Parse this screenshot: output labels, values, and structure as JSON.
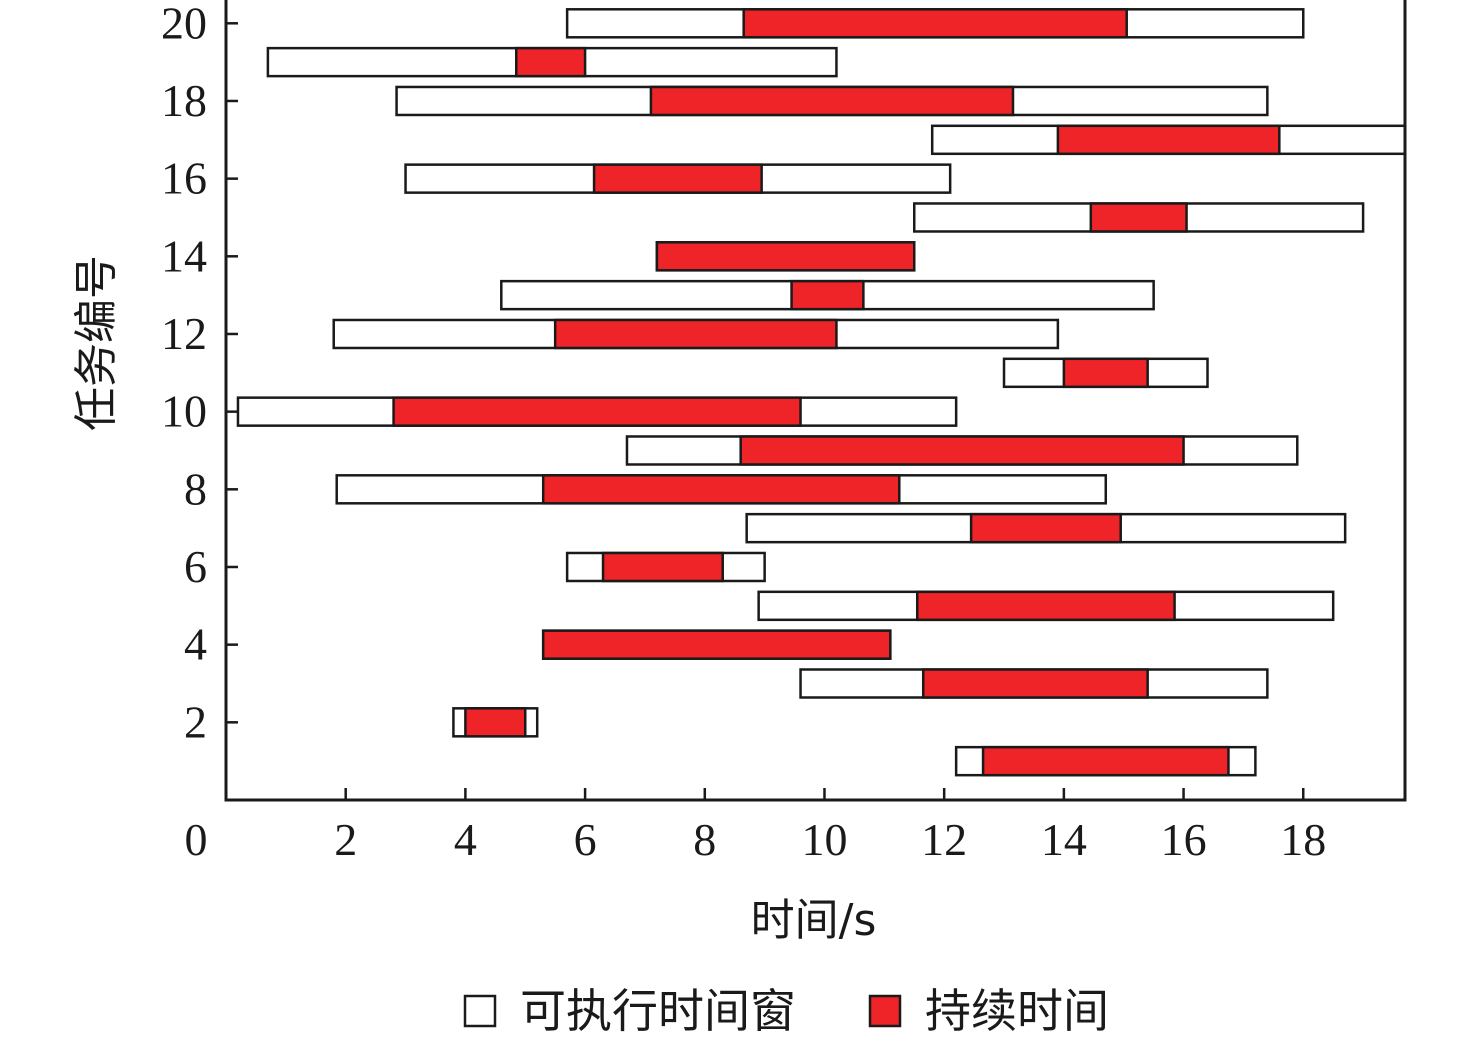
{
  "chart_data": {
    "type": "gantt",
    "xlabel": "时间/s",
    "ylabel": "任务编号",
    "xlim": [
      0,
      19.7
    ],
    "ylim": [
      0,
      20.6
    ],
    "xticks": [
      0,
      2,
      4,
      6,
      8,
      10,
      12,
      14,
      16,
      18
    ],
    "yticks": [
      2,
      4,
      6,
      8,
      10,
      12,
      14,
      16,
      18,
      20
    ],
    "grid": false,
    "legend_position": "bottom",
    "colors": {
      "window": "#ffffff",
      "duration": "#ee2429",
      "stroke": "#1a1a1a"
    },
    "legend": [
      {
        "name": "可执行时间窗",
        "color": "#ffffff"
      },
      {
        "name": "持续时间",
        "color": "#ee2429"
      }
    ],
    "tasks": [
      {
        "id": 1,
        "window": [
          12.2,
          17.2
        ],
        "duration": [
          12.65,
          16.75
        ]
      },
      {
        "id": 2,
        "window": [
          3.8,
          5.2
        ],
        "duration": [
          4.0,
          5.0
        ]
      },
      {
        "id": 3,
        "window": [
          9.6,
          17.4
        ],
        "duration": [
          11.65,
          15.4
        ]
      },
      {
        "id": 4,
        "window": [
          5.3,
          11.1
        ],
        "duration": [
          5.3,
          11.1
        ]
      },
      {
        "id": 5,
        "window": [
          8.9,
          18.5
        ],
        "duration": [
          11.55,
          15.85
        ]
      },
      {
        "id": 6,
        "window": [
          5.7,
          9.0
        ],
        "duration": [
          6.3,
          8.3
        ]
      },
      {
        "id": 7,
        "window": [
          8.7,
          18.7
        ],
        "duration": [
          12.45,
          14.95
        ]
      },
      {
        "id": 8,
        "window": [
          1.85,
          14.7
        ],
        "duration": [
          5.3,
          11.25
        ]
      },
      {
        "id": 9,
        "window": [
          6.7,
          17.9
        ],
        "duration": [
          8.6,
          16.0
        ]
      },
      {
        "id": 10,
        "window": [
          0.2,
          12.2
        ],
        "duration": [
          2.8,
          9.6
        ]
      },
      {
        "id": 11,
        "window": [
          13.0,
          16.4
        ],
        "duration": [
          14.0,
          15.4
        ]
      },
      {
        "id": 12,
        "window": [
          1.8,
          13.9
        ],
        "duration": [
          5.5,
          10.2
        ]
      },
      {
        "id": 13,
        "window": [
          4.6,
          15.5
        ],
        "duration": [
          9.45,
          10.65
        ]
      },
      {
        "id": 14,
        "window": [
          7.2,
          11.5
        ],
        "duration": [
          7.2,
          11.5
        ]
      },
      {
        "id": 15,
        "window": [
          11.5,
          19.0
        ],
        "duration": [
          14.45,
          16.05
        ]
      },
      {
        "id": 16,
        "window": [
          3.0,
          12.1
        ],
        "duration": [
          6.15,
          8.95
        ]
      },
      {
        "id": 17,
        "window": [
          11.8,
          19.7
        ],
        "duration": [
          13.9,
          17.6
        ]
      },
      {
        "id": 18,
        "window": [
          2.85,
          17.4
        ],
        "duration": [
          7.1,
          13.15
        ]
      },
      {
        "id": 19,
        "window": [
          0.7,
          10.2
        ],
        "duration": [
          4.85,
          6.0
        ]
      },
      {
        "id": 20,
        "window": [
          5.7,
          18.0
        ],
        "duration": [
          8.65,
          15.05
        ]
      }
    ]
  }
}
